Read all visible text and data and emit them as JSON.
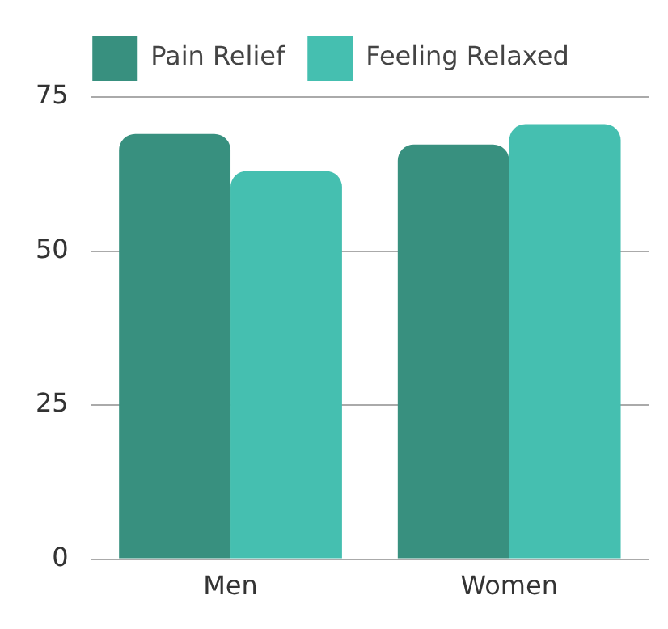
{
  "chart_data": {
    "type": "bar",
    "categories": [
      "Men",
      "Women"
    ],
    "series": [
      {
        "name": "Pain Relief",
        "color": "#38907f",
        "values": [
          69,
          67.3
        ]
      },
      {
        "name": "Feeling Relaxed",
        "color": "#45bfb0",
        "values": [
          63,
          70.6
        ]
      }
    ],
    "ylim": [
      0,
      75
    ],
    "yticks": [
      0,
      25,
      50,
      75
    ],
    "grid": "y",
    "legend": "top"
  }
}
